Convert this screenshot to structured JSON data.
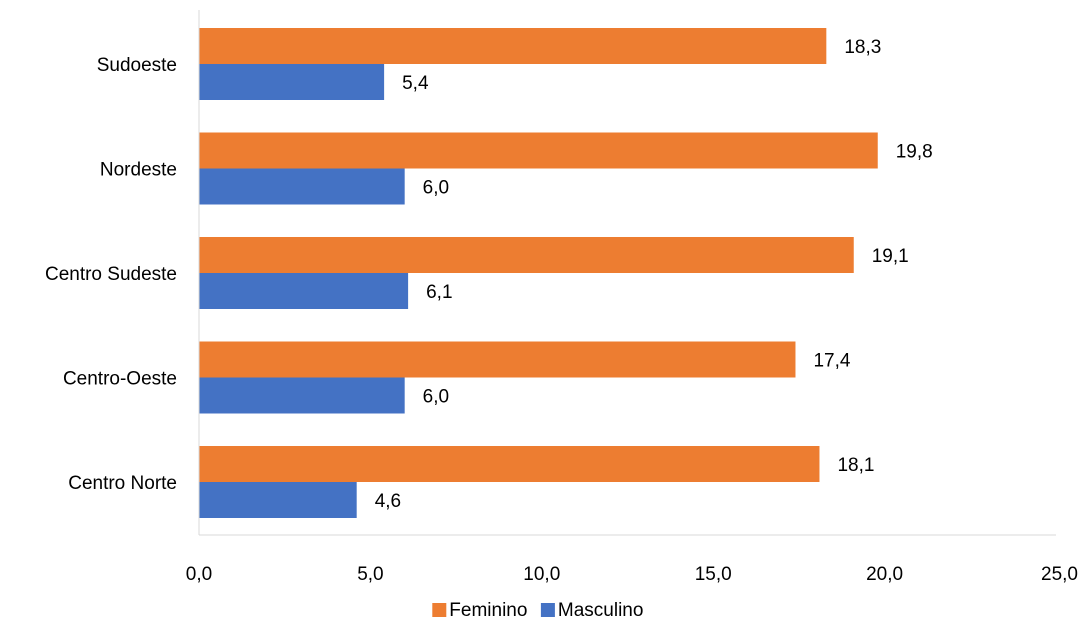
{
  "chart_data": {
    "type": "bar",
    "orientation": "horizontal",
    "categories": [
      "Sudoeste",
      "Nordeste",
      "Centro Sudeste",
      "Centro-Oeste",
      "Centro Norte"
    ],
    "series": [
      {
        "name": "Feminino",
        "color": "#ED7D31",
        "values": [
          18.3,
          19.8,
          19.1,
          17.4,
          18.1
        ],
        "labels": [
          "18,3",
          "19,8",
          "19,1",
          "17,4",
          "18,1"
        ]
      },
      {
        "name": "Masculino",
        "color": "#4472C4",
        "values": [
          5.4,
          6.0,
          6.1,
          6.0,
          4.6
        ],
        "labels": [
          "5,4",
          "6,0",
          "6,1",
          "6,0",
          "4,6"
        ]
      }
    ],
    "x_ticks": [
      "0,0",
      "5,0",
      "10,0",
      "15,0",
      "20,0",
      "25,0"
    ],
    "xlim": [
      0,
      25
    ],
    "grid": false,
    "legend_position": "bottom",
    "title": "",
    "xlabel": "",
    "ylabel": ""
  }
}
